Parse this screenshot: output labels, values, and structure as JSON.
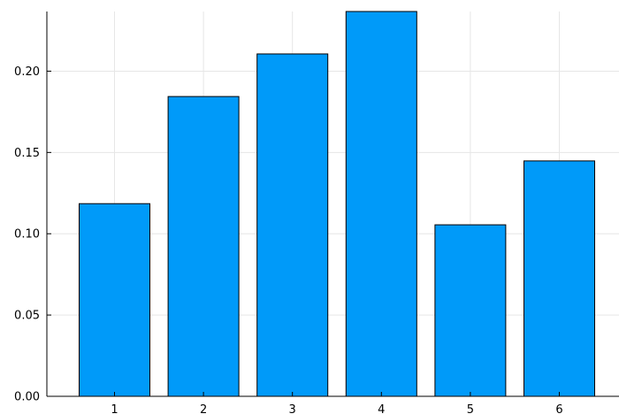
{
  "chart_data": {
    "type": "bar",
    "categories": [
      "1",
      "2",
      "3",
      "4",
      "5",
      "6"
    ],
    "values": [
      0.1185,
      0.1844,
      0.2106,
      0.2367,
      0.1055,
      0.1448
    ],
    "title": "",
    "xlabel": "",
    "ylabel": "",
    "ylim": [
      0,
      0.2367
    ],
    "yticks": [
      0.0,
      0.05,
      0.1,
      0.15,
      0.2
    ],
    "ytick_labels": [
      "0.00",
      "0.05",
      "0.10",
      "0.15",
      "0.20"
    ],
    "grid": true,
    "legend": "none",
    "bar_color": "#009AF9",
    "bar_edge_color": "#000000",
    "grid_color": "#e6e6e6"
  }
}
